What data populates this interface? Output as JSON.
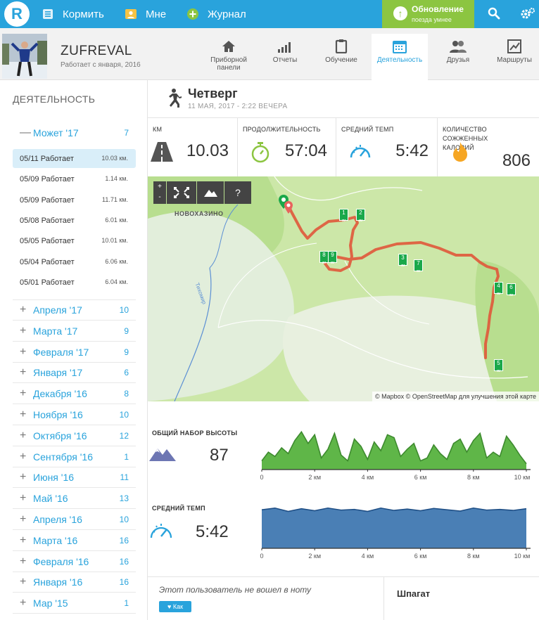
{
  "topbar": {
    "logo": "R",
    "nav": [
      {
        "label": "Кормить",
        "icon": "feed-icon"
      },
      {
        "label": "Мне",
        "icon": "profile-icon"
      },
      {
        "label": "Журнал",
        "icon": "plus-icon"
      }
    ],
    "update": {
      "title": "Обновление",
      "subtitle": "поезда умнее"
    }
  },
  "profile": {
    "name": "ZUFREVAL",
    "since": "Работает с января, 2016"
  },
  "tabs": [
    {
      "label": "Приборной панели",
      "icon": "home-icon"
    },
    {
      "label": "Отчеты",
      "icon": "reports-icon"
    },
    {
      "label": "Обучение",
      "icon": "training-icon"
    },
    {
      "label": "Деятельность",
      "icon": "calendar-icon",
      "active": true
    },
    {
      "label": "Друзья",
      "icon": "friends-icon"
    },
    {
      "label": "Маршруты",
      "icon": "routes-icon"
    }
  ],
  "sidebar": {
    "title": "ДЕЯТЕЛЬНОСТЬ",
    "expanded": {
      "label": "Может '17",
      "count": "7"
    },
    "activities": [
      {
        "date": "05/11 Работает",
        "km": "10.03 км."
      },
      {
        "date": "05/09 Работает",
        "km": "1.14 км."
      },
      {
        "date": "05/09 Работает",
        "km": "11.71 км."
      },
      {
        "date": "05/08 Работает",
        "km": "6.01 км."
      },
      {
        "date": "05/05 Работает",
        "km": "10.01 км."
      },
      {
        "date": "05/04 Работает",
        "km": "6.06 км."
      },
      {
        "date": "05/01 Работает",
        "km": "6.04 км."
      }
    ],
    "months": [
      {
        "label": "Апреля '17",
        "count": "10"
      },
      {
        "label": "Марта '17",
        "count": "9"
      },
      {
        "label": "Февраля '17",
        "count": "9"
      },
      {
        "label": "Января '17",
        "count": "6"
      },
      {
        "label": "Декабря '16",
        "count": "8"
      },
      {
        "label": "Ноября '16",
        "count": "10"
      },
      {
        "label": "Октября '16",
        "count": "12"
      },
      {
        "label": "Сентября '16",
        "count": "1"
      },
      {
        "label": "Июня '16",
        "count": "11"
      },
      {
        "label": "Май '16",
        "count": "13"
      },
      {
        "label": "Апреля '16",
        "count": "10"
      },
      {
        "label": "Марта '16",
        "count": "16"
      },
      {
        "label": "Февраля '16",
        "count": "16"
      },
      {
        "label": "Января '16",
        "count": "16"
      },
      {
        "label": "Мар '15",
        "count": "1"
      }
    ]
  },
  "activity": {
    "day": "Четверг",
    "date": "11 МАЯ, 2017 - 2:22 ВЕЧЕРА",
    "stats": {
      "km_label": "КМ",
      "km": "10.03",
      "duration_label": "ПРОДОЛЖИТЕЛЬНОСТЬ",
      "duration": "57:04",
      "pace_label": "СРЕДНИЙ ТЕМП",
      "pace": "5:42",
      "calories_label": "КОЛИЧЕСТВО СОЖЖЕННЫХ КАЛОРИЙ",
      "calories": "806"
    }
  },
  "map": {
    "place": "НОВОХАЗИНО",
    "river": "Тихомир",
    "attribution": "© Mapbox © OpenStreetMap для улучшения этой карте",
    "controls": {
      "zoom_in": "+",
      "zoom_out": "-",
      "help": "?"
    },
    "km_markers": [
      "1",
      "2",
      "3",
      "4",
      "5",
      "6",
      "7",
      "8",
      "9"
    ],
    "colors": {
      "route": "#e0583a",
      "marker": "#1aa84a",
      "land": "#cce7a8"
    }
  },
  "elevation": {
    "label": "ОБЩИЙ НАБОР ВЫСОТЫ",
    "value": "87",
    "fill": "#5fb648"
  },
  "pace": {
    "label": "СРЕДНИЙ ТЕМП",
    "value": "5:42",
    "fill": "#4a7fb5"
  },
  "chart_data": [
    {
      "type": "area",
      "x": [
        0,
        0.25,
        0.5,
        0.75,
        1,
        1.25,
        1.5,
        1.75,
        2,
        2.25,
        2.5,
        2.75,
        3,
        3.25,
        3.5,
        3.75,
        4,
        4.25,
        4.5,
        4.75,
        5,
        5.25,
        5.5,
        5.75,
        6,
        6.25,
        6.5,
        6.75,
        7,
        7.25,
        7.5,
        7.75,
        8,
        8.25,
        8.5,
        8.75,
        9,
        9.25,
        9.5,
        9.75,
        10
      ],
      "values": [
        6,
        12,
        9,
        15,
        11,
        20,
        26,
        18,
        24,
        8,
        14,
        25,
        10,
        6,
        21,
        16,
        7,
        19,
        13,
        24,
        22,
        9,
        14,
        18,
        6,
        8,
        17,
        11,
        7,
        18,
        21,
        12,
        20,
        25,
        8,
        12,
        9,
        23,
        17,
        10,
        4
      ],
      "xlabel": "",
      "ylabel": "",
      "tick_labels": [
        "0",
        "2 км",
        "4 км",
        "6 км",
        "8 км",
        "10 км"
      ],
      "xlim": [
        0,
        10
      ]
    },
    {
      "type": "area",
      "x": [
        0,
        0.5,
        1,
        1.5,
        2,
        2.5,
        3,
        3.5,
        4,
        4.5,
        5,
        5.5,
        6,
        6.5,
        7,
        7.5,
        8,
        8.5,
        9,
        9.5,
        10
      ],
      "values": [
        5.45,
        5.5,
        5.4,
        5.48,
        5.42,
        5.5,
        5.44,
        5.46,
        5.4,
        5.5,
        5.43,
        5.47,
        5.42,
        5.49,
        5.45,
        5.41,
        5.5,
        5.44,
        5.46,
        5.43,
        5.48
      ],
      "xlabel": "",
      "ylabel": "",
      "tick_labels": [
        "0",
        "2 км",
        "4 км",
        "6 км",
        "8 км",
        "10 км"
      ],
      "xlim": [
        0,
        10
      ]
    }
  ],
  "bottom": {
    "note": "Этот пользователь не вошел в ноту",
    "like": "Как",
    "gear": "Шпагат"
  }
}
